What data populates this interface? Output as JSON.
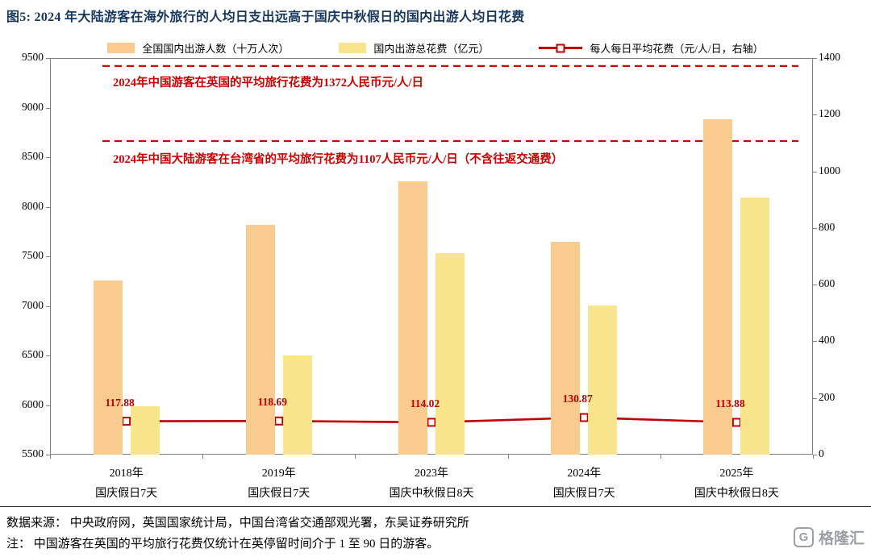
{
  "title": "图5:  2024 年大陆游客在海外旅行的人均日支出远高于国庆中秋假日的国内出游人均日花费",
  "colors": {
    "bar_visitors": "#FACB8F",
    "bar_spending": "#F8E58C",
    "line": "#C00000",
    "reference_line": "#D00000",
    "annotation": "#CC0000",
    "title": "#17375E"
  },
  "chart_data": {
    "type": "bar",
    "title": "2024 年大陆游客在海外旅行的人均日支出远高于国庆中秋假日的国内出游人均日花费",
    "categories": [
      {
        "line1": "2018年",
        "line2": "国庆假日7天"
      },
      {
        "line1": "2019年",
        "line2": "国庆假日7天"
      },
      {
        "line1": "2023年",
        "line2": "国庆中秋假日8天"
      },
      {
        "line1": "2024年",
        "line2": "国庆假日7天"
      },
      {
        "line1": "2025年",
        "line2": "国庆中秋假日8天"
      }
    ],
    "series": [
      {
        "name": "全国国内出游人数（十万人次）",
        "type": "bar",
        "axis": "left",
        "color": "#FACB8F",
        "values": [
          7260,
          7820,
          8260,
          7650,
          8880
        ]
      },
      {
        "name": "国内出游总花费（亿元）",
        "type": "bar",
        "axis": "left",
        "color": "#F8E58C",
        "values": [
          5991,
          6497,
          7534,
          7008,
          8090
        ]
      },
      {
        "name": "每人每日平均花费（元/人/日，右轴）",
        "type": "line",
        "axis": "right",
        "color": "#C00000",
        "values": [
          117.88,
          118.69,
          114.02,
          130.87,
          113.88
        ]
      }
    ],
    "left_axis": {
      "min": 5500,
      "max": 9500,
      "ticks": [
        5500,
        6000,
        6500,
        7000,
        7500,
        8000,
        8500,
        9000,
        9500
      ]
    },
    "right_axis": {
      "min": 0,
      "max": 1400,
      "ticks": [
        0,
        200,
        400,
        600,
        800,
        1000,
        1200,
        1400
      ]
    },
    "reference_lines": [
      {
        "value": 1372,
        "label": "2024年中国游客在英国的平均旅行花费为1372人民币元/人/日"
      },
      {
        "value": 1107,
        "label": "2024年中国大陆游客在台湾省的平均旅行花费为1107人民币元/人/日（不含往返交通费）"
      }
    ],
    "grid": false,
    "legend_position": "top"
  },
  "footer": {
    "source": "数据来源： 中央政府网，英国国家统计局，中国台湾省交通部观光署，东吴证券研究所",
    "note": "注： 中国游客在英国的平均旅行花费仅统计在英停留时间介于 1 至 90 日的游客。"
  },
  "watermark": {
    "text": "格隆汇",
    "icon": "G"
  }
}
